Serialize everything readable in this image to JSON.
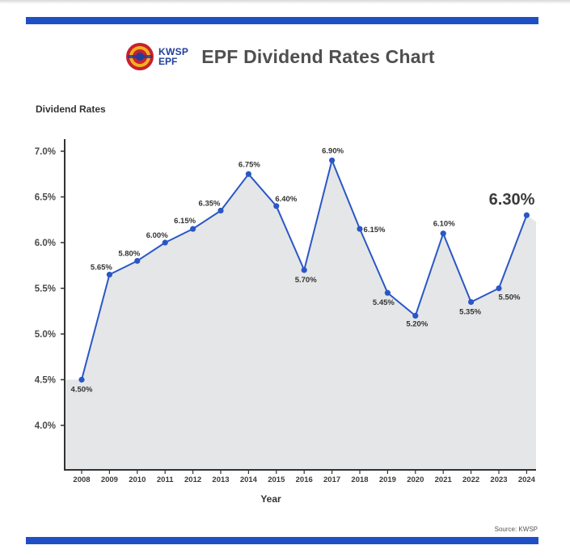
{
  "header": {
    "logo_kwsp": "KWSP",
    "logo_epf": "EPF",
    "title": "EPF Dividend Rates Chart"
  },
  "source": "Source: KWSP",
  "colors": {
    "accent": "#1f4fc4",
    "line": "#2a57c6",
    "area": "#e5e6e8",
    "title": "#4f4f4f"
  },
  "chart_data": {
    "type": "area",
    "title": "EPF Dividend Rates Chart",
    "xlabel": "Year",
    "ylabel": "Dividend Rates",
    "categories": [
      "2008",
      "2009",
      "2010",
      "2011",
      "2012",
      "2013",
      "2014",
      "2015",
      "2016",
      "2017",
      "2018",
      "2019",
      "2020",
      "2021",
      "2022",
      "2023",
      "2024"
    ],
    "values": [
      4.5,
      5.65,
      5.8,
      6.0,
      6.15,
      6.35,
      6.75,
      6.4,
      5.7,
      6.9,
      6.15,
      5.45,
      5.2,
      6.1,
      5.35,
      5.5,
      6.3
    ],
    "labels": [
      "4.50%",
      "5.65%",
      "5.80%",
      "6.00%",
      "6.15%",
      "6.35%",
      "6.75%",
      "6.40%",
      "5.70%",
      "6.90%",
      "6.15%",
      "5.45%",
      "5.20%",
      "6.10%",
      "5.35%",
      "5.50%",
      "6.30%"
    ],
    "yticks": [
      "4.0%",
      "4.5%",
      "5.0%",
      "5.5%",
      "6.0%",
      "6.5%",
      "7.0%"
    ],
    "ytick_values": [
      4.0,
      4.5,
      5.0,
      5.5,
      6.0,
      6.5,
      7.0
    ],
    "ylim": [
      3.5,
      7.0
    ],
    "grid": false,
    "highlight": "2024"
  }
}
